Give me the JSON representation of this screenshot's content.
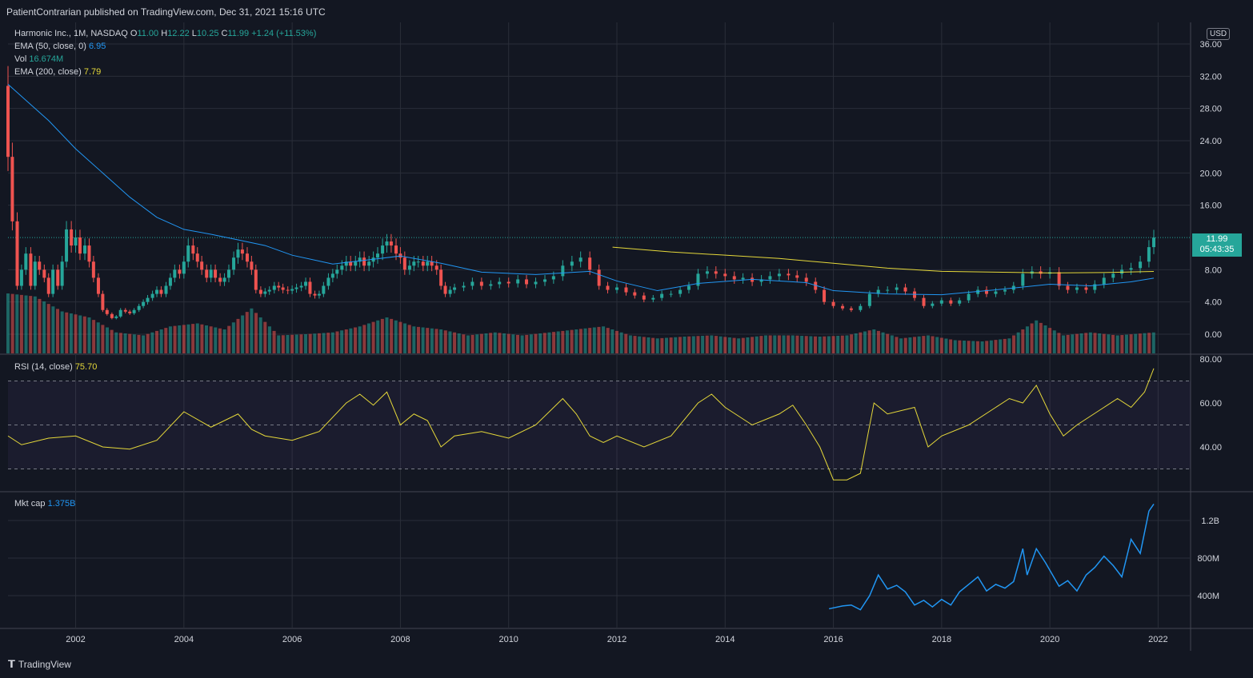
{
  "header": {
    "publisher": "PatientContrarian published on TradingView.com, Dec 31, 2021 15:16 UTC"
  },
  "footer": {
    "brand": "TradingView"
  },
  "legend": {
    "symbol": "Harmonic Inc., 1M, NASDAQ",
    "o_label": "O",
    "o_value": "11.00",
    "h_label": "H",
    "h_value": "12.22",
    "l_label": "L",
    "l_value": "10.25",
    "c_label": "C",
    "c_value": "11.99",
    "change": "+1.24 (+11.53%)",
    "ema50_label": "EMA (50, close, 0)",
    "ema50_value": "6.95",
    "vol_label": "Vol",
    "vol_value": "16.674M",
    "ema200_label": "EMA (200, close)",
    "ema200_value": "7.79",
    "rsi_label": "RSI (14, close)",
    "rsi_value": "75.70",
    "mktcap_label": "Mkt cap",
    "mktcap_value": "1.375B"
  },
  "currency": "USD",
  "last_price": {
    "price": "11.99",
    "countdown": "05:43:35"
  },
  "colors": {
    "background": "#131722",
    "up": "#26a69a",
    "down": "#ef5350",
    "ema50": "#2196f3",
    "ema200": "#e5d83a",
    "rsi": "#e5d83a",
    "mktcap": "#2196f3",
    "grid": "#2a2e39"
  },
  "chart_data": [
    {
      "type": "candlestick",
      "title": "Harmonic Inc., 1M, NASDAQ",
      "x_ticks": [
        "2002",
        "2004",
        "2006",
        "2008",
        "2010",
        "2012",
        "2014",
        "2016",
        "2018",
        "2020",
        "2022"
      ],
      "y_ticks": [
        "36.00",
        "32.00",
        "28.00",
        "24.00",
        "20.00",
        "16.00",
        "11.99",
        "8.00",
        "4.00",
        "0.00"
      ],
      "ylim": [
        0,
        36
      ],
      "x_range": [
        2000.75,
        2021.95
      ],
      "close_series": [
        [
          2000.75,
          22
        ],
        [
          2000.83,
          14
        ],
        [
          2000.92,
          6
        ],
        [
          2001.0,
          8
        ],
        [
          2001.08,
          10
        ],
        [
          2001.17,
          6
        ],
        [
          2001.25,
          9
        ],
        [
          2001.33,
          8
        ],
        [
          2001.42,
          7
        ],
        [
          2001.5,
          5
        ],
        [
          2001.58,
          8
        ],
        [
          2001.67,
          6
        ],
        [
          2001.75,
          9
        ],
        [
          2001.83,
          13
        ],
        [
          2001.92,
          11
        ],
        [
          2002.0,
          12
        ],
        [
          2002.08,
          10
        ],
        [
          2002.17,
          11
        ],
        [
          2002.25,
          9
        ],
        [
          2002.33,
          7
        ],
        [
          2002.42,
          5
        ],
        [
          2002.5,
          3
        ],
        [
          2002.58,
          2.5
        ],
        [
          2002.67,
          2
        ],
        [
          2002.75,
          2.2
        ],
        [
          2002.83,
          3
        ],
        [
          2002.92,
          2.8
        ],
        [
          2003.0,
          2.6
        ],
        [
          2003.08,
          3
        ],
        [
          2003.17,
          3.5
        ],
        [
          2003.25,
          4
        ],
        [
          2003.33,
          4.5
        ],
        [
          2003.42,
          5
        ],
        [
          2003.5,
          5.5
        ],
        [
          2003.58,
          5
        ],
        [
          2003.67,
          6
        ],
        [
          2003.75,
          7
        ],
        [
          2003.83,
          8
        ],
        [
          2003.92,
          7.5
        ],
        [
          2004.0,
          9
        ],
        [
          2004.08,
          11
        ],
        [
          2004.17,
          10
        ],
        [
          2004.25,
          9
        ],
        [
          2004.33,
          8
        ],
        [
          2004.42,
          7
        ],
        [
          2004.5,
          8
        ],
        [
          2004.58,
          7
        ],
        [
          2004.67,
          6.5
        ],
        [
          2004.75,
          7
        ],
        [
          2004.83,
          8
        ],
        [
          2004.92,
          9.5
        ],
        [
          2005.0,
          10.5
        ],
        [
          2005.08,
          10
        ],
        [
          2005.17,
          9
        ],
        [
          2005.25,
          8
        ],
        [
          2005.33,
          5.5
        ],
        [
          2005.42,
          5
        ],
        [
          2005.5,
          5.3
        ],
        [
          2005.58,
          5.5
        ],
        [
          2005.67,
          6
        ],
        [
          2005.75,
          5.8
        ],
        [
          2005.83,
          5.5
        ],
        [
          2005.92,
          5.4
        ],
        [
          2006.0,
          5.6
        ],
        [
          2006.08,
          5.8
        ],
        [
          2006.17,
          6
        ],
        [
          2006.25,
          6.5
        ],
        [
          2006.33,
          5
        ],
        [
          2006.42,
          4.8
        ],
        [
          2006.5,
          5
        ],
        [
          2006.58,
          6
        ],
        [
          2006.67,
          7
        ],
        [
          2006.75,
          7.5
        ],
        [
          2006.83,
          8
        ],
        [
          2006.92,
          8.5
        ],
        [
          2007.0,
          9
        ],
        [
          2007.08,
          8.5
        ],
        [
          2007.17,
          9
        ],
        [
          2007.25,
          9.5
        ],
        [
          2007.33,
          8.5
        ],
        [
          2007.42,
          9
        ],
        [
          2007.5,
          9.5
        ],
        [
          2007.58,
          10
        ],
        [
          2007.67,
          11
        ],
        [
          2007.75,
          11.5
        ],
        [
          2007.83,
          11
        ],
        [
          2007.92,
          10
        ],
        [
          2008.0,
          9.5
        ],
        [
          2008.08,
          8
        ],
        [
          2008.17,
          8.5
        ],
        [
          2008.25,
          9
        ],
        [
          2008.33,
          9
        ],
        [
          2008.42,
          8.5
        ],
        [
          2008.5,
          9
        ],
        [
          2008.58,
          8.5
        ],
        [
          2008.67,
          8
        ],
        [
          2008.75,
          6
        ],
        [
          2008.83,
          5
        ],
        [
          2008.92,
          5.5
        ],
        [
          2009.0,
          5.8
        ],
        [
          2009.17,
          6
        ],
        [
          2009.33,
          6.5
        ],
        [
          2009.5,
          6
        ],
        [
          2009.67,
          6.2
        ],
        [
          2009.83,
          6.5
        ],
        [
          2010.0,
          6.3
        ],
        [
          2010.17,
          6.8
        ],
        [
          2010.33,
          6.2
        ],
        [
          2010.5,
          6.5
        ],
        [
          2010.67,
          6.8
        ],
        [
          2010.83,
          7.2
        ],
        [
          2011.0,
          8.5
        ],
        [
          2011.17,
          9
        ],
        [
          2011.33,
          9.5
        ],
        [
          2011.5,
          8
        ],
        [
          2011.67,
          6
        ],
        [
          2011.83,
          5.5
        ],
        [
          2012.0,
          5.8
        ],
        [
          2012.17,
          5.2
        ],
        [
          2012.33,
          4.8
        ],
        [
          2012.5,
          4.3
        ],
        [
          2012.67,
          4.5
        ],
        [
          2012.83,
          5
        ],
        [
          2013.0,
          5
        ],
        [
          2013.17,
          5.5
        ],
        [
          2013.33,
          6
        ],
        [
          2013.5,
          7.5
        ],
        [
          2013.67,
          7.8
        ],
        [
          2013.83,
          7.5
        ],
        [
          2014.0,
          7.2
        ],
        [
          2014.17,
          6.8
        ],
        [
          2014.33,
          7
        ],
        [
          2014.5,
          6.5
        ],
        [
          2014.67,
          6.8
        ],
        [
          2014.83,
          7.2
        ],
        [
          2015.0,
          7.5
        ],
        [
          2015.17,
          7.3
        ],
        [
          2015.33,
          7
        ],
        [
          2015.5,
          6.5
        ],
        [
          2015.67,
          5.5
        ],
        [
          2015.83,
          4
        ],
        [
          2016.0,
          3.5
        ],
        [
          2016.17,
          3.2
        ],
        [
          2016.33,
          3
        ],
        [
          2016.5,
          3.5
        ],
        [
          2016.67,
          5
        ],
        [
          2016.83,
          5.5
        ],
        [
          2017.0,
          5.5
        ],
        [
          2017.17,
          5.8
        ],
        [
          2017.33,
          5.3
        ],
        [
          2017.5,
          4.5
        ],
        [
          2017.67,
          3.5
        ],
        [
          2017.83,
          3.8
        ],
        [
          2018.0,
          4.2
        ],
        [
          2018.17,
          3.8
        ],
        [
          2018.33,
          4.2
        ],
        [
          2018.5,
          5
        ],
        [
          2018.67,
          5.5
        ],
        [
          2018.83,
          5
        ],
        [
          2019.0,
          5.3
        ],
        [
          2019.17,
          5.5
        ],
        [
          2019.33,
          6
        ],
        [
          2019.5,
          7.5
        ],
        [
          2019.67,
          7.8
        ],
        [
          2019.83,
          7.5
        ],
        [
          2020.0,
          7.7
        ],
        [
          2020.17,
          6
        ],
        [
          2020.33,
          5.5
        ],
        [
          2020.5,
          5.8
        ],
        [
          2020.67,
          5.5
        ],
        [
          2020.83,
          6.2
        ],
        [
          2021.0,
          7
        ],
        [
          2021.17,
          7.5
        ],
        [
          2021.33,
          8
        ],
        [
          2021.5,
          8.2
        ],
        [
          2021.67,
          9
        ],
        [
          2021.83,
          10.8
        ],
        [
          2021.92,
          11.99
        ]
      ],
      "ema50": [
        [
          2000.75,
          31
        ],
        [
          2001.5,
          26.5
        ],
        [
          2002.0,
          23
        ],
        [
          2002.5,
          20
        ],
        [
          2003.0,
          17
        ],
        [
          2003.5,
          14.5
        ],
        [
          2004.0,
          13
        ],
        [
          2004.5,
          12.4
        ],
        [
          2005.0,
          11.7
        ],
        [
          2005.5,
          11
        ],
        [
          2006.0,
          9.8
        ],
        [
          2006.75,
          8.7
        ],
        [
          2007.5,
          9.3
        ],
        [
          2008.0,
          9.7
        ],
        [
          2008.75,
          8.8
        ],
        [
          2009.5,
          7.7
        ],
        [
          2010.5,
          7.4
        ],
        [
          2011.5,
          7.8
        ],
        [
          2012.0,
          6.6
        ],
        [
          2012.75,
          5.4
        ],
        [
          2013.5,
          6.3
        ],
        [
          2014.5,
          6.8
        ],
        [
          2015.5,
          6.4
        ],
        [
          2016.0,
          5.4
        ],
        [
          2017.0,
          5
        ],
        [
          2018.0,
          4.9
        ],
        [
          2019.0,
          5.5
        ],
        [
          2020.0,
          6.2
        ],
        [
          2020.75,
          6.0
        ],
        [
          2021.5,
          6.5
        ],
        [
          2021.92,
          6.95
        ]
      ],
      "ema200": [
        [
          2011.92,
          10.8
        ],
        [
          2013.0,
          10.2
        ],
        [
          2014.0,
          9.8
        ],
        [
          2015.0,
          9.4
        ],
        [
          2016.0,
          8.8
        ],
        [
          2017.0,
          8.2
        ],
        [
          2018.0,
          7.8
        ],
        [
          2019.0,
          7.7
        ],
        [
          2020.0,
          7.6
        ],
        [
          2021.0,
          7.65
        ],
        [
          2021.92,
          7.79
        ]
      ],
      "volume_series": [
        [
          2000.75,
          1.0
        ],
        [
          2001.25,
          0.95
        ],
        [
          2001.75,
          0.7
        ],
        [
          2002.25,
          0.6
        ],
        [
          2002.75,
          0.35
        ],
        [
          2003.25,
          0.3
        ],
        [
          2003.75,
          0.45
        ],
        [
          2004.25,
          0.5
        ],
        [
          2004.75,
          0.4
        ],
        [
          2005.25,
          0.75
        ],
        [
          2005.75,
          0.3
        ],
        [
          2006.25,
          0.32
        ],
        [
          2006.75,
          0.35
        ],
        [
          2007.25,
          0.45
        ],
        [
          2007.75,
          0.6
        ],
        [
          2008.25,
          0.45
        ],
        [
          2008.75,
          0.4
        ],
        [
          2009.25,
          0.3
        ],
        [
          2009.75,
          0.35
        ],
        [
          2010.25,
          0.3
        ],
        [
          2010.75,
          0.35
        ],
        [
          2011.25,
          0.4
        ],
        [
          2011.75,
          0.45
        ],
        [
          2012.25,
          0.3
        ],
        [
          2012.75,
          0.25
        ],
        [
          2013.25,
          0.28
        ],
        [
          2013.75,
          0.3
        ],
        [
          2014.25,
          0.25
        ],
        [
          2014.75,
          0.3
        ],
        [
          2015.25,
          0.3
        ],
        [
          2015.75,
          0.28
        ],
        [
          2016.25,
          0.3
        ],
        [
          2016.75,
          0.4
        ],
        [
          2017.25,
          0.25
        ],
        [
          2017.75,
          0.3
        ],
        [
          2018.25,
          0.22
        ],
        [
          2018.75,
          0.2
        ],
        [
          2019.25,
          0.25
        ],
        [
          2019.75,
          0.55
        ],
        [
          2020.25,
          0.3
        ],
        [
          2020.75,
          0.35
        ],
        [
          2021.25,
          0.3
        ],
        [
          2021.92,
          0.35
        ]
      ]
    },
    {
      "type": "line",
      "title": "RSI (14, close)",
      "y_ticks": [
        "80.00",
        "60.00",
        "40.00"
      ],
      "ylim": [
        20,
        80
      ],
      "bands": [
        30,
        50,
        70
      ],
      "x": [
        2000.75,
        2001.0,
        2001.5,
        2002.0,
        2002.5,
        2003.0,
        2003.5,
        2004.0,
        2004.5,
        2005.0,
        2005.25,
        2005.5,
        2006.0,
        2006.5,
        2007.0,
        2007.25,
        2007.5,
        2007.75,
        2008.0,
        2008.25,
        2008.5,
        2008.75,
        2009.0,
        2009.5,
        2010.0,
        2010.5,
        2011.0,
        2011.25,
        2011.5,
        2011.75,
        2012.0,
        2012.5,
        2013.0,
        2013.5,
        2013.75,
        2014.0,
        2014.5,
        2015.0,
        2015.25,
        2015.5,
        2015.75,
        2016.0,
        2016.25,
        2016.5,
        2016.75,
        2017.0,
        2017.5,
        2017.75,
        2018.0,
        2018.5,
        2019.0,
        2019.25,
        2019.5,
        2019.75,
        2020.0,
        2020.25,
        2020.5,
        2021.0,
        2021.25,
        2021.5,
        2021.75,
        2021.92
      ],
      "values": [
        45,
        41,
        44,
        45,
        40,
        39,
        43,
        56,
        49,
        55,
        48,
        45,
        43,
        47,
        60,
        64,
        59,
        65,
        50,
        55,
        52,
        40,
        45,
        47,
        44,
        50,
        62,
        55,
        45,
        42,
        45,
        40,
        45,
        60,
        64,
        58,
        50,
        55,
        59,
        50,
        40,
        25,
        25,
        28,
        60,
        55,
        58,
        40,
        45,
        50,
        58,
        62,
        60,
        68,
        55,
        45,
        50,
        58,
        62,
        58,
        65,
        75.7
      ]
    },
    {
      "type": "line",
      "title": "Mkt cap",
      "y_ticks": [
        "1.2B",
        "800M",
        "400M"
      ],
      "ylim": [
        200,
        1500
      ],
      "x": [
        2015.92,
        2016.17,
        2016.33,
        2016.5,
        2016.67,
        2016.83,
        2017.0,
        2017.17,
        2017.33,
        2017.5,
        2017.67,
        2017.83,
        2018.0,
        2018.17,
        2018.33,
        2018.5,
        2018.67,
        2018.83,
        2019.0,
        2019.17,
        2019.33,
        2019.5,
        2019.58,
        2019.75,
        2019.92,
        2020.17,
        2020.33,
        2020.5,
        2020.67,
        2020.83,
        2021.0,
        2021.17,
        2021.33,
        2021.5,
        2021.67,
        2021.83,
        2021.92
      ],
      "values": [
        260,
        290,
        300,
        250,
        400,
        620,
        470,
        510,
        440,
        300,
        350,
        280,
        360,
        300,
        440,
        520,
        600,
        450,
        520,
        480,
        550,
        900,
        620,
        900,
        750,
        500,
        560,
        450,
        620,
        700,
        820,
        720,
        600,
        1000,
        850,
        1300,
        1375
      ]
    }
  ]
}
